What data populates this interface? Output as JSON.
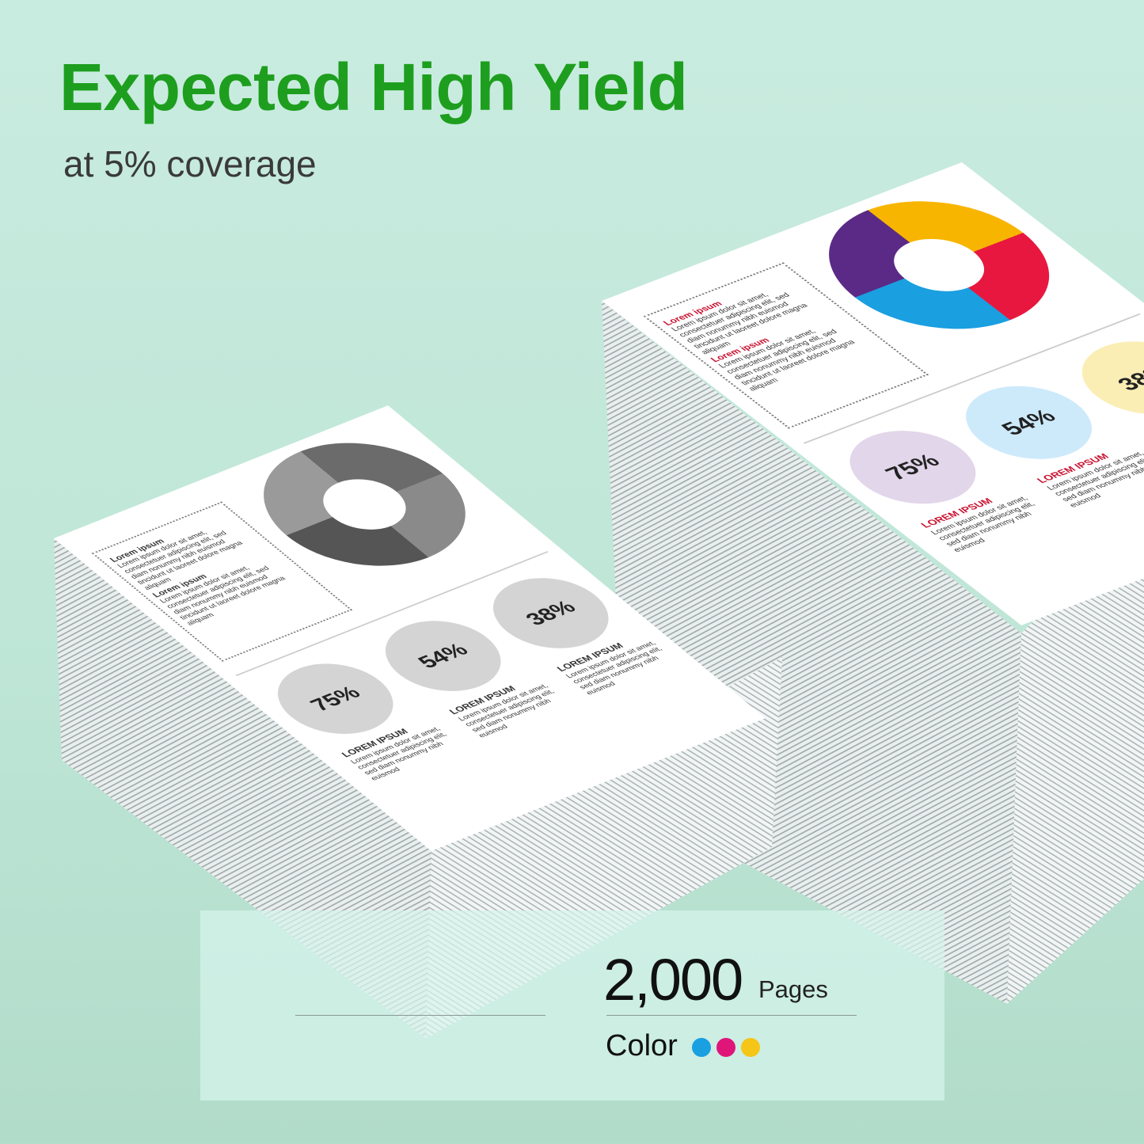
{
  "header": {
    "title": "Expected High Yield",
    "subtitle": "at 5% coverage"
  },
  "panel": {
    "count": "2,000",
    "unit": "Pages",
    "label": "Color",
    "dots": [
      "#1a9fe0",
      "#e0157a",
      "#f5c518"
    ]
  },
  "pages": {
    "box_heading": "Lorem ipsum",
    "box_text": "Lorem ipsum dolor sit amet, consectetuer adipiscing elit, sed diam nonummy nibh euismod tincidunt ut laoreet dolore magna aliquam",
    "box_text2": "Lorem ipsum dolor sit amet, consectetuer adipiscing elit, sed diam nonummy nibh euismod tincidunt ut laoreet dolore magna aliquam",
    "col_heading": "LOREM IPSUM",
    "col_text": "Lorem ipsum dolor sit amet, consectetuer adipiscing elit, sed diam nonummy nibh euismod",
    "percents": [
      "75%",
      "54%",
      "38%"
    ],
    "mono": {
      "cycle": [
        "#6b6b6b",
        "#8a8a8a",
        "#555555",
        "#9a9a9a"
      ],
      "rings": [
        "#d4d4d4",
        "#d4d4d4",
        "#d4d4d4"
      ],
      "heading_color": "#333333"
    },
    "color": {
      "cycle": [
        "#f7b500",
        "#e8173f",
        "#1a9fe0",
        "#5b2a86"
      ],
      "rings": [
        "#e2d6ea",
        "#cdeafb",
        "#fbeeb5"
      ],
      "heading_color": "#c8102e"
    }
  }
}
